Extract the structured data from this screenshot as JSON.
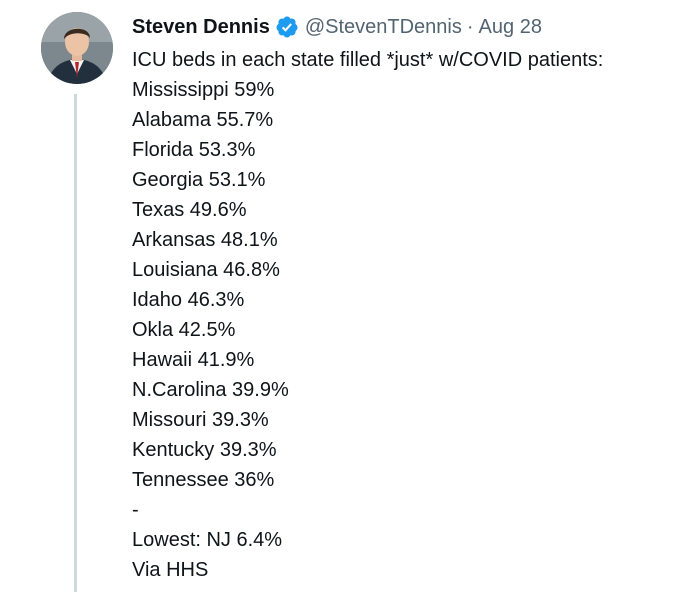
{
  "tweet": {
    "author": {
      "display_name": "Steven Dennis",
      "handle": "@StevenTDennis",
      "verified": true,
      "avatar_icon": "avatar-photo"
    },
    "separator": "·",
    "date": "Aug 28",
    "lines": [
      "ICU beds in each state filled *just* w/COVID patients:",
      "Mississippi 59%",
      "Alabama 55.7%",
      "Florida 53.3%",
      "Georgia 53.1%",
      "Texas 49.6%",
      "Arkansas 48.1%",
      "Louisiana 46.8%",
      "Idaho 46.3%",
      "Okla 42.5%",
      "Hawaii 41.9%",
      "N.Carolina 39.9%",
      "Missouri 39.3%",
      "Kentucky 39.3%",
      "Tennessee 36%",
      "-",
      "Lowest: NJ 6.4%",
      "Via HHS"
    ]
  },
  "colors": {
    "verified_badge": "#1d9bf0",
    "secondary_text": "#536471",
    "primary_text": "#0f1419",
    "thread_line": "#cfd9de"
  }
}
